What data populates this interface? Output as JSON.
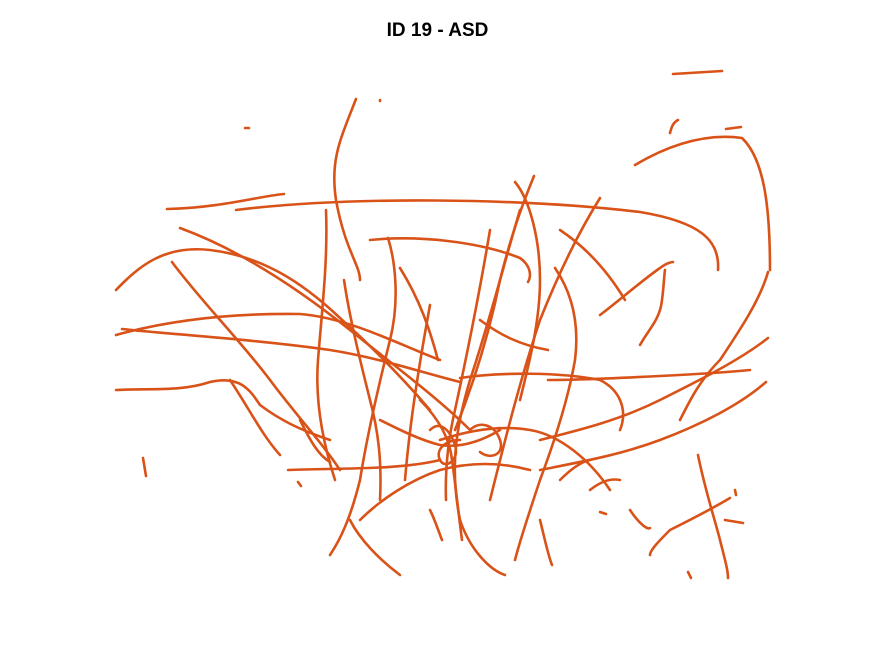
{
  "figure": {
    "title": "ID 19 - ASD",
    "trace_color": "#D95319",
    "background": "#ffffff"
  }
}
